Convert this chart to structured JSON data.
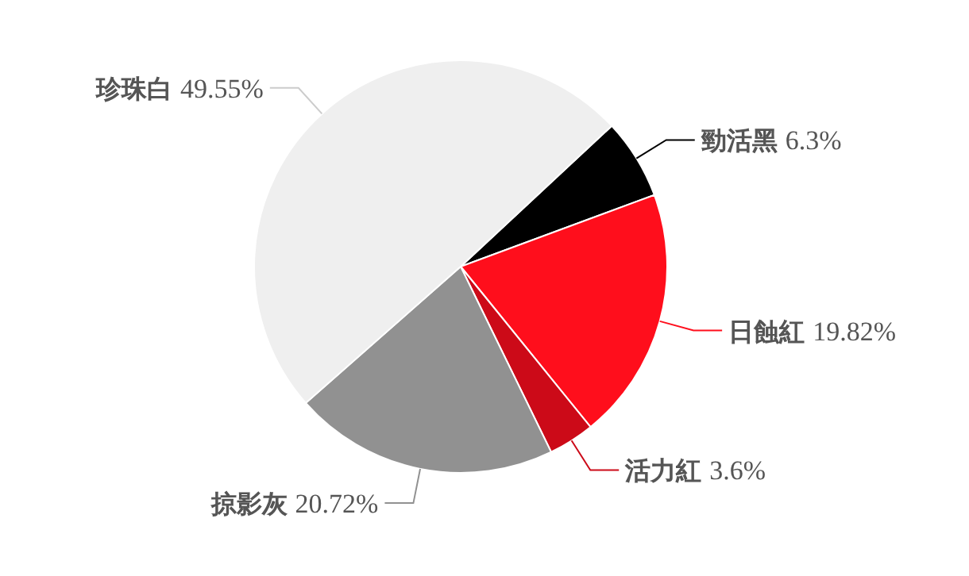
{
  "chart_data": {
    "type": "pie",
    "categories": [
      "勁活黑",
      "日蝕紅",
      "活力紅",
      "掠影灰",
      "珍珠白"
    ],
    "values": [
      6.3,
      19.82,
      3.6,
      20.72,
      49.55
    ],
    "value_labels": [
      "6.3%",
      "19.82%",
      "3.6%",
      "20.72%",
      "49.55%"
    ],
    "colors": [
      "#000000",
      "#ff0e1c",
      "#cc0a18",
      "#919191",
      "#efefef"
    ]
  }
}
